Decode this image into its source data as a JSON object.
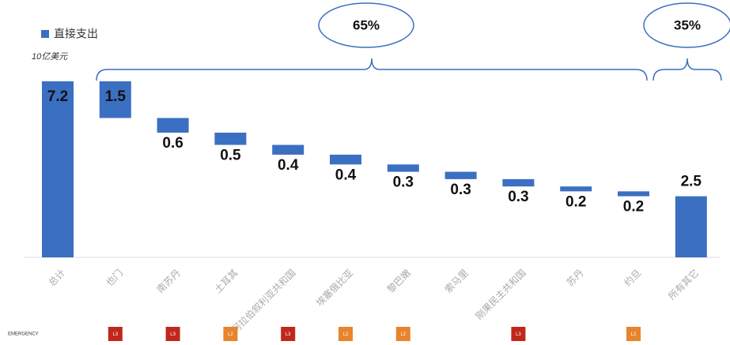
{
  "chart_data": {
    "type": "waterfall",
    "y_label": "10亿美元",
    "categories": [
      "总计",
      "也门",
      "南苏丹",
      "土耳其",
      "阿拉伯叙利亚共和国",
      "埃塞俄比亚",
      "黎巴嫩",
      "索马里",
      "刚果民主共和国",
      "苏丹",
      "约旦",
      "所有其它"
    ],
    "series": [
      {
        "name": "直接支出",
        "color": "#3b6fc1",
        "values": [
          7.2,
          1.5,
          0.6,
          0.5,
          0.4,
          0.4,
          0.3,
          0.3,
          0.3,
          0.2,
          0.2,
          2.5
        ]
      }
    ],
    "shares": [
      {
        "value": 65,
        "label": "65%"
      },
      {
        "value": 35,
        "label": "35%"
      }
    ],
    "badge_row": {
      "label": "EMERGENCY",
      "levels": [
        null,
        "L3",
        "L3",
        "L2",
        "L3",
        "L2",
        "L2",
        null,
        "L3",
        null,
        "L2",
        null
      ]
    },
    "level_colors": {
      "L3": "#c0281b",
      "L2": "#e8832e"
    }
  }
}
